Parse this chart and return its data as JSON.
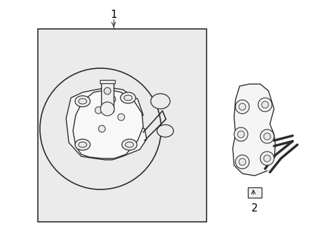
{
  "background_color": "#ffffff",
  "box_bg_color": "#ebebeb",
  "line_color": "#2a2a2a",
  "label_color": "#000000",
  "label1_text": "1",
  "label2_text": "2",
  "figsize": [
    4.89,
    3.6
  ],
  "dpi": 100
}
